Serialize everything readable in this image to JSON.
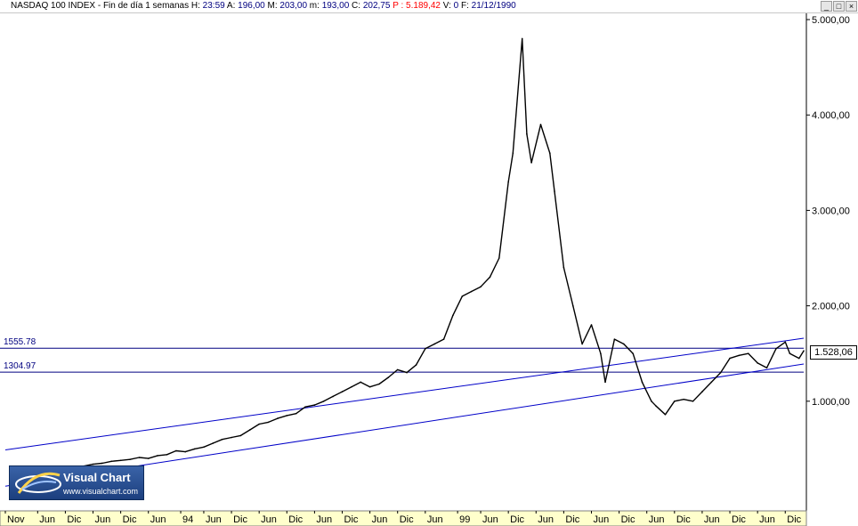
{
  "header": {
    "symbol": "NASDAQ 100 INDEX",
    "period": "Fin de día 1 semanas",
    "fields": [
      {
        "label": "H:",
        "value": "23:59"
      },
      {
        "label": "A:",
        "value": "196,00"
      },
      {
        "label": "M:",
        "value": "203,00"
      },
      {
        "label": "m:",
        "value": "193,00"
      },
      {
        "label": "C:",
        "value": "202,75"
      }
    ],
    "p_field": {
      "label": "P :",
      "value": "5.189,42"
    },
    "tail_fields": [
      {
        "label": "V:",
        "value": "0"
      },
      {
        "label": "F:",
        "value": "21/12/1990"
      }
    ],
    "window_buttons": [
      "_",
      "□",
      "×"
    ]
  },
  "logo": {
    "title": "Visual Chart",
    "url": "www.visualchart.com"
  },
  "current_price": "1.528,06",
  "colors": {
    "price_line": "#000000",
    "trend_lines": "#0000c8",
    "levels": "#000080",
    "grid_text": "#000000",
    "bottom_axis_bg": "#ffffcc"
  },
  "chart_data": {
    "type": "line",
    "title": "",
    "xlabel": "",
    "ylabel": "",
    "ylim": [
      0,
      5000
    ],
    "y_ticks": [
      {
        "value": 1000,
        "label": "1.000,00"
      },
      {
        "value": 2000,
        "label": "2.000,00"
      },
      {
        "value": 3000,
        "label": "3.000,00"
      },
      {
        "value": 4000,
        "label": "4.000,00"
      },
      {
        "value": 5000,
        "label": "5.000,00"
      }
    ],
    "x_range": [
      "1990-11",
      "2005-04"
    ],
    "x_ticks": [
      {
        "date": "1990-11",
        "label": "Nov"
      },
      {
        "date": "1991-06",
        "label": "Jun"
      },
      {
        "date": "1991-12",
        "label": "Dic"
      },
      {
        "date": "1992-06",
        "label": "Jun"
      },
      {
        "date": "1992-12",
        "label": "Dic"
      },
      {
        "date": "1993-06",
        "label": "Jun"
      },
      {
        "date": "1994-01",
        "label": "94"
      },
      {
        "date": "1994-06",
        "label": "Jun"
      },
      {
        "date": "1994-12",
        "label": "Dic"
      },
      {
        "date": "1995-06",
        "label": "Jun"
      },
      {
        "date": "1995-12",
        "label": "Dic"
      },
      {
        "date": "1996-06",
        "label": "Jun"
      },
      {
        "date": "1996-12",
        "label": "Dic"
      },
      {
        "date": "1997-06",
        "label": "Jun"
      },
      {
        "date": "1997-12",
        "label": "Dic"
      },
      {
        "date": "1998-06",
        "label": "Jun"
      },
      {
        "date": "1999-01",
        "label": "99"
      },
      {
        "date": "1999-06",
        "label": "Jun"
      },
      {
        "date": "1999-12",
        "label": "Dic"
      },
      {
        "date": "2000-06",
        "label": "Jun"
      },
      {
        "date": "2000-12",
        "label": "Dic"
      },
      {
        "date": "2001-06",
        "label": "Jun"
      },
      {
        "date": "2001-12",
        "label": "Dic"
      },
      {
        "date": "2002-06",
        "label": "Jun"
      },
      {
        "date": "2002-12",
        "label": "Dic"
      },
      {
        "date": "2003-06",
        "label": "Jun"
      },
      {
        "date": "2003-12",
        "label": "Dic"
      },
      {
        "date": "2004-06",
        "label": "Jun"
      },
      {
        "date": "2004-12",
        "label": "Dic"
      }
    ],
    "series": [
      {
        "x": [
          "1990-12",
          "1991-02",
          "1991-04",
          "1991-06",
          "1991-08",
          "1991-10",
          "1991-12",
          "1992-02",
          "1992-04",
          "1992-06",
          "1992-08",
          "1992-10",
          "1992-12",
          "1993-02",
          "1993-04",
          "1993-06",
          "1993-08",
          "1993-10",
          "1993-12",
          "1994-02",
          "1994-04",
          "1994-06",
          "1994-08",
          "1994-10",
          "1994-12",
          "1995-02",
          "1995-04",
          "1995-06",
          "1995-08",
          "1995-10",
          "1995-12",
          "1996-02",
          "1996-04",
          "1996-06",
          "1996-08",
          "1996-10",
          "1996-12",
          "1997-02",
          "1997-04",
          "1997-06",
          "1997-08",
          "1997-10",
          "1997-12",
          "1998-02",
          "1998-04",
          "1998-06",
          "1998-08",
          "1998-10",
          "1998-12",
          "1999-02",
          "1999-04",
          "1999-06",
          "1999-08",
          "1999-10",
          "1999-12",
          "2000-01",
          "2000-03",
          "2000-04",
          "2000-05",
          "2000-07",
          "2000-09",
          "2000-10",
          "2000-12",
          "2001-02",
          "2001-04",
          "2001-06",
          "2001-08",
          "2001-09",
          "2001-11",
          "2002-01",
          "2002-03",
          "2002-05",
          "2002-07",
          "2002-08",
          "2002-10",
          "2002-12",
          "2003-02",
          "2003-04",
          "2003-06",
          "2003-08",
          "2003-10",
          "2003-12",
          "2004-02",
          "2004-04",
          "2004-06",
          "2004-08",
          "2004-10",
          "2004-12",
          "2005-01",
          "2005-03",
          "2005-04"
        ],
        "y": [
          190,
          210,
          260,
          270,
          290,
          310,
          300,
          310,
          320,
          340,
          350,
          370,
          380,
          390,
          410,
          400,
          430,
          440,
          480,
          470,
          500,
          520,
          560,
          600,
          620,
          640,
          700,
          760,
          780,
          820,
          850,
          870,
          940,
          960,
          1000,
          1050,
          1100,
          1150,
          1200,
          1150,
          1180,
          1250,
          1330,
          1300,
          1380,
          1550,
          1600,
          1650,
          1900,
          2100,
          2150,
          2200,
          2300,
          2500,
          3300,
          3600,
          4800,
          3800,
          3500,
          3900,
          3600,
          3200,
          2400,
          2000,
          1600,
          1800,
          1500,
          1200,
          1650,
          1600,
          1500,
          1200,
          1000,
          950,
          860,
          1000,
          1020,
          1000,
          1100,
          1200,
          1300,
          1450,
          1480,
          1500,
          1400,
          1350,
          1550,
          1620,
          1500,
          1450,
          1528
        ]
      }
    ],
    "levels": [
      {
        "value": 1555.78,
        "label": "1555.78"
      },
      {
        "value": 1304.97,
        "label": "1304.97"
      }
    ],
    "trend_lines": [
      {
        "from": {
          "x": "1990-11",
          "y": 490
        },
        "to": {
          "x": "2005-04",
          "y": 1660
        }
      },
      {
        "from": {
          "x": "1990-11",
          "y": 110
        },
        "to": {
          "x": "2005-04",
          "y": 1390
        }
      }
    ],
    "grid": false,
    "legend": "none"
  }
}
